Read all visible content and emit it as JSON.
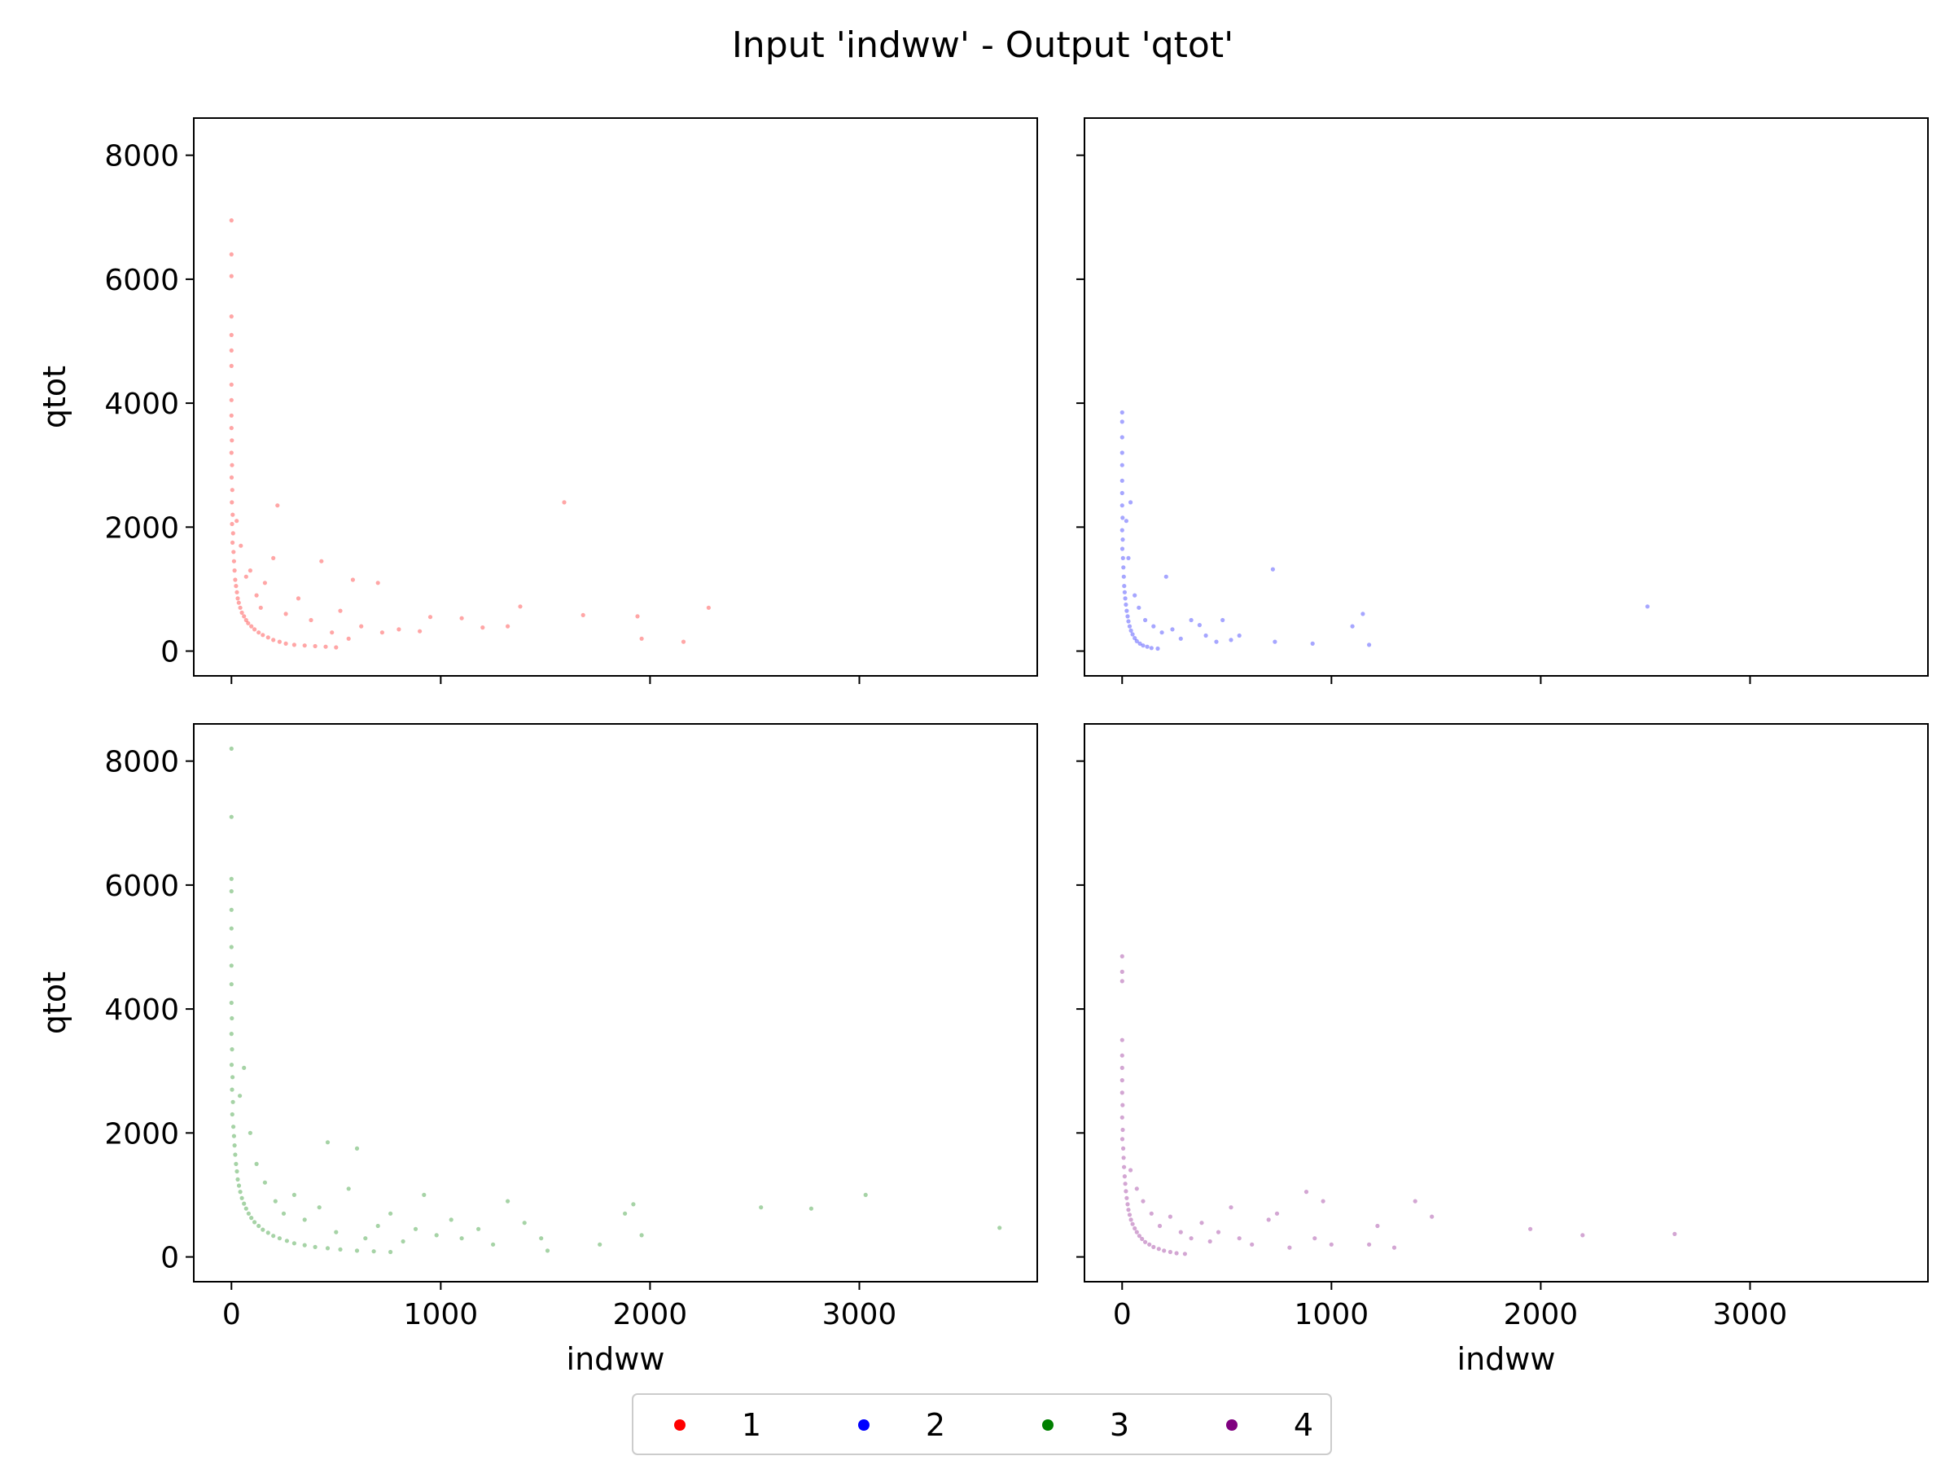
{
  "figure_title": "Input 'indww' - Output 'qtot'",
  "legend": [
    {
      "label": "1",
      "color": "#ff0000"
    },
    {
      "label": "2",
      "color": "#0000ff"
    },
    {
      "label": "3",
      "color": "#008000"
    },
    {
      "label": "4",
      "color": "#800080"
    }
  ],
  "chart_data": [
    {
      "type": "scatter",
      "panel": "top-left",
      "series_label": "1",
      "color": "#ff0000",
      "xlabel": "",
      "ylabel": "qtot",
      "xlim": [
        -180,
        3850
      ],
      "ylim": [
        -400,
        8600
      ],
      "xticks": [
        0,
        1000,
        2000,
        3000
      ],
      "yticks": [
        0,
        2000,
        4000,
        6000,
        8000
      ],
      "show_x_ticklabels": false,
      "show_y_ticklabels": true,
      "points": [
        [
          0,
          6950
        ],
        [
          0,
          6400
        ],
        [
          0,
          6050
        ],
        [
          0,
          5400
        ],
        [
          0,
          5100
        ],
        [
          0,
          4850
        ],
        [
          0,
          4600
        ],
        [
          0,
          4300
        ],
        [
          0,
          4050
        ],
        [
          0,
          3800
        ],
        [
          0,
          3600
        ],
        [
          2,
          3400
        ],
        [
          0,
          3200
        ],
        [
          3,
          3000
        ],
        [
          1,
          2800
        ],
        [
          4,
          2600
        ],
        [
          2,
          2400
        ],
        [
          6,
          2200
        ],
        [
          3,
          2050
        ],
        [
          8,
          1900
        ],
        [
          5,
          1750
        ],
        [
          10,
          1600
        ],
        [
          12,
          1450
        ],
        [
          15,
          1300
        ],
        [
          18,
          1150
        ],
        [
          22,
          1050
        ],
        [
          26,
          950
        ],
        [
          30,
          850
        ],
        [
          35,
          780
        ],
        [
          42,
          700
        ],
        [
          50,
          620
        ],
        [
          60,
          560
        ],
        [
          70,
          500
        ],
        [
          80,
          450
        ],
        [
          95,
          400
        ],
        [
          110,
          350
        ],
        [
          130,
          300
        ],
        [
          150,
          260
        ],
        [
          175,
          220
        ],
        [
          200,
          180
        ],
        [
          230,
          150
        ],
        [
          260,
          120
        ],
        [
          300,
          100
        ],
        [
          350,
          90
        ],
        [
          400,
          80
        ],
        [
          450,
          70
        ],
        [
          500,
          60
        ],
        [
          120,
          900
        ],
        [
          160,
          1100
        ],
        [
          90,
          1300
        ],
        [
          140,
          700
        ],
        [
          200,
          1500
        ],
        [
          220,
          2350
        ],
        [
          260,
          600
        ],
        [
          320,
          850
        ],
        [
          380,
          500
        ],
        [
          430,
          1450
        ],
        [
          480,
          300
        ],
        [
          520,
          650
        ],
        [
          560,
          200
        ],
        [
          580,
          1150
        ],
        [
          620,
          400
        ],
        [
          700,
          1100
        ],
        [
          720,
          300
        ],
        [
          800,
          350
        ],
        [
          900,
          320
        ],
        [
          950,
          550
        ],
        [
          1100,
          530
        ],
        [
          1200,
          380
        ],
        [
          1320,
          400
        ],
        [
          1380,
          720
        ],
        [
          1590,
          2400
        ],
        [
          1680,
          580
        ],
        [
          1940,
          560
        ],
        [
          1960,
          200
        ],
        [
          2160,
          150
        ],
        [
          2280,
          700
        ],
        [
          70,
          1200
        ],
        [
          45,
          1700
        ],
        [
          25,
          2100
        ]
      ]
    },
    {
      "type": "scatter",
      "panel": "top-right",
      "series_label": "2",
      "color": "#0000ff",
      "xlabel": "",
      "ylabel": "",
      "xlim": [
        -180,
        3850
      ],
      "ylim": [
        -400,
        8600
      ],
      "xticks": [
        0,
        1000,
        2000,
        3000
      ],
      "yticks": [
        0,
        2000,
        4000,
        6000,
        8000
      ],
      "show_x_ticklabels": false,
      "show_y_ticklabels": false,
      "points": [
        [
          0,
          3850
        ],
        [
          0,
          3700
        ],
        [
          0,
          3450
        ],
        [
          0,
          3200
        ],
        [
          0,
          3000
        ],
        [
          0,
          2750
        ],
        [
          0,
          2550
        ],
        [
          0,
          2350
        ],
        [
          2,
          2150
        ],
        [
          0,
          1950
        ],
        [
          3,
          1800
        ],
        [
          1,
          1650
        ],
        [
          4,
          1500
        ],
        [
          6,
          1350
        ],
        [
          8,
          1200
        ],
        [
          10,
          1050
        ],
        [
          12,
          950
        ],
        [
          15,
          850
        ],
        [
          18,
          750
        ],
        [
          22,
          650
        ],
        [
          26,
          560
        ],
        [
          30,
          480
        ],
        [
          36,
          400
        ],
        [
          42,
          330
        ],
        [
          50,
          270
        ],
        [
          60,
          210
        ],
        [
          70,
          160
        ],
        [
          85,
          120
        ],
        [
          100,
          90
        ],
        [
          120,
          70
        ],
        [
          140,
          50
        ],
        [
          170,
          40
        ],
        [
          40,
          2400
        ],
        [
          20,
          2100
        ],
        [
          30,
          1500
        ],
        [
          60,
          900
        ],
        [
          80,
          700
        ],
        [
          110,
          500
        ],
        [
          150,
          400
        ],
        [
          190,
          300
        ],
        [
          210,
          1200
        ],
        [
          240,
          350
        ],
        [
          280,
          200
        ],
        [
          330,
          500
        ],
        [
          370,
          420
        ],
        [
          400,
          250
        ],
        [
          450,
          150
        ],
        [
          480,
          500
        ],
        [
          520,
          180
        ],
        [
          560,
          250
        ],
        [
          720,
          1320
        ],
        [
          730,
          150
        ],
        [
          910,
          120
        ],
        [
          1100,
          400
        ],
        [
          1150,
          600
        ],
        [
          1180,
          100
        ],
        [
          2510,
          720
        ]
      ]
    },
    {
      "type": "scatter",
      "panel": "bottom-left",
      "series_label": "3",
      "color": "#008000",
      "xlabel": "indww",
      "ylabel": "qtot",
      "xlim": [
        -180,
        3850
      ],
      "ylim": [
        -400,
        8600
      ],
      "xticks": [
        0,
        1000,
        2000,
        3000
      ],
      "yticks": [
        0,
        2000,
        4000,
        6000,
        8000
      ],
      "show_x_ticklabels": true,
      "show_y_ticklabels": true,
      "points": [
        [
          0,
          8200
        ],
        [
          0,
          7100
        ],
        [
          0,
          6100
        ],
        [
          0,
          5900
        ],
        [
          0,
          5600
        ],
        [
          0,
          5300
        ],
        [
          0,
          5000
        ],
        [
          0,
          4700
        ],
        [
          0,
          4400
        ],
        [
          0,
          4100
        ],
        [
          2,
          3850
        ],
        [
          0,
          3600
        ],
        [
          3,
          3350
        ],
        [
          1,
          3100
        ],
        [
          5,
          2900
        ],
        [
          3,
          2700
        ],
        [
          7,
          2500
        ],
        [
          4,
          2300
        ],
        [
          9,
          2100
        ],
        [
          12,
          1950
        ],
        [
          15,
          1800
        ],
        [
          18,
          1650
        ],
        [
          22,
          1500
        ],
        [
          26,
          1380
        ],
        [
          30,
          1250
        ],
        [
          36,
          1150
        ],
        [
          42,
          1050
        ],
        [
          50,
          950
        ],
        [
          60,
          860
        ],
        [
          70,
          780
        ],
        [
          82,
          700
        ],
        [
          95,
          630
        ],
        [
          110,
          560
        ],
        [
          130,
          500
        ],
        [
          150,
          440
        ],
        [
          175,
          390
        ],
        [
          200,
          340
        ],
        [
          230,
          300
        ],
        [
          265,
          260
        ],
        [
          300,
          220
        ],
        [
          350,
          190
        ],
        [
          400,
          160
        ],
        [
          460,
          140
        ],
        [
          520,
          120
        ],
        [
          600,
          100
        ],
        [
          680,
          90
        ],
        [
          760,
          80
        ],
        [
          60,
          3050
        ],
        [
          40,
          2600
        ],
        [
          90,
          2000
        ],
        [
          120,
          1500
        ],
        [
          160,
          1200
        ],
        [
          210,
          900
        ],
        [
          250,
          700
        ],
        [
          300,
          1000
        ],
        [
          350,
          600
        ],
        [
          420,
          800
        ],
        [
          460,
          1850
        ],
        [
          500,
          400
        ],
        [
          560,
          1100
        ],
        [
          600,
          1750
        ],
        [
          640,
          300
        ],
        [
          700,
          500
        ],
        [
          760,
          700
        ],
        [
          820,
          250
        ],
        [
          880,
          450
        ],
        [
          920,
          1000
        ],
        [
          980,
          350
        ],
        [
          1050,
          600
        ],
        [
          1100,
          300
        ],
        [
          1180,
          450
        ],
        [
          1250,
          200
        ],
        [
          1320,
          900
        ],
        [
          1400,
          550
        ],
        [
          1480,
          300
        ],
        [
          1510,
          100
        ],
        [
          1760,
          200
        ],
        [
          1880,
          700
        ],
        [
          1920,
          850
        ],
        [
          1960,
          350
        ],
        [
          2530,
          800
        ],
        [
          2770,
          780
        ],
        [
          3030,
          1000
        ],
        [
          3670,
          470
        ]
      ]
    },
    {
      "type": "scatter",
      "panel": "bottom-right",
      "series_label": "4",
      "color": "#800080",
      "xlabel": "indww",
      "ylabel": "",
      "xlim": [
        -180,
        3850
      ],
      "ylim": [
        -400,
        8600
      ],
      "xticks": [
        0,
        1000,
        2000,
        3000
      ],
      "yticks": [
        0,
        2000,
        4000,
        6000,
        8000
      ],
      "show_x_ticklabels": true,
      "show_y_ticklabels": false,
      "points": [
        [
          0,
          4850
        ],
        [
          0,
          4600
        ],
        [
          0,
          4450
        ],
        [
          0,
          3500
        ],
        [
          0,
          3250
        ],
        [
          0,
          3050
        ],
        [
          0,
          2850
        ],
        [
          0,
          2650
        ],
        [
          2,
          2450
        ],
        [
          0,
          2250
        ],
        [
          3,
          2050
        ],
        [
          1,
          1900
        ],
        [
          5,
          1750
        ],
        [
          7,
          1600
        ],
        [
          9,
          1450
        ],
        [
          12,
          1300
        ],
        [
          15,
          1180
        ],
        [
          18,
          1060
        ],
        [
          22,
          950
        ],
        [
          26,
          850
        ],
        [
          30,
          760
        ],
        [
          36,
          680
        ],
        [
          42,
          600
        ],
        [
          50,
          530
        ],
        [
          60,
          460
        ],
        [
          70,
          400
        ],
        [
          82,
          340
        ],
        [
          95,
          290
        ],
        [
          110,
          240
        ],
        [
          130,
          200
        ],
        [
          150,
          160
        ],
        [
          175,
          130
        ],
        [
          200,
          100
        ],
        [
          230,
          80
        ],
        [
          260,
          60
        ],
        [
          300,
          50
        ],
        [
          40,
          1400
        ],
        [
          70,
          1100
        ],
        [
          100,
          900
        ],
        [
          140,
          700
        ],
        [
          180,
          500
        ],
        [
          230,
          650
        ],
        [
          280,
          400
        ],
        [
          330,
          300
        ],
        [
          380,
          550
        ],
        [
          420,
          250
        ],
        [
          460,
          400
        ],
        [
          520,
          800
        ],
        [
          560,
          300
        ],
        [
          620,
          200
        ],
        [
          700,
          600
        ],
        [
          740,
          700
        ],
        [
          800,
          150
        ],
        [
          880,
          1050
        ],
        [
          920,
          300
        ],
        [
          960,
          900
        ],
        [
          1000,
          200
        ],
        [
          1180,
          200
        ],
        [
          1220,
          500
        ],
        [
          1300,
          150
        ],
        [
          1400,
          900
        ],
        [
          1480,
          650
        ],
        [
          1950,
          450
        ],
        [
          2200,
          350
        ],
        [
          2640,
          370
        ]
      ]
    }
  ]
}
